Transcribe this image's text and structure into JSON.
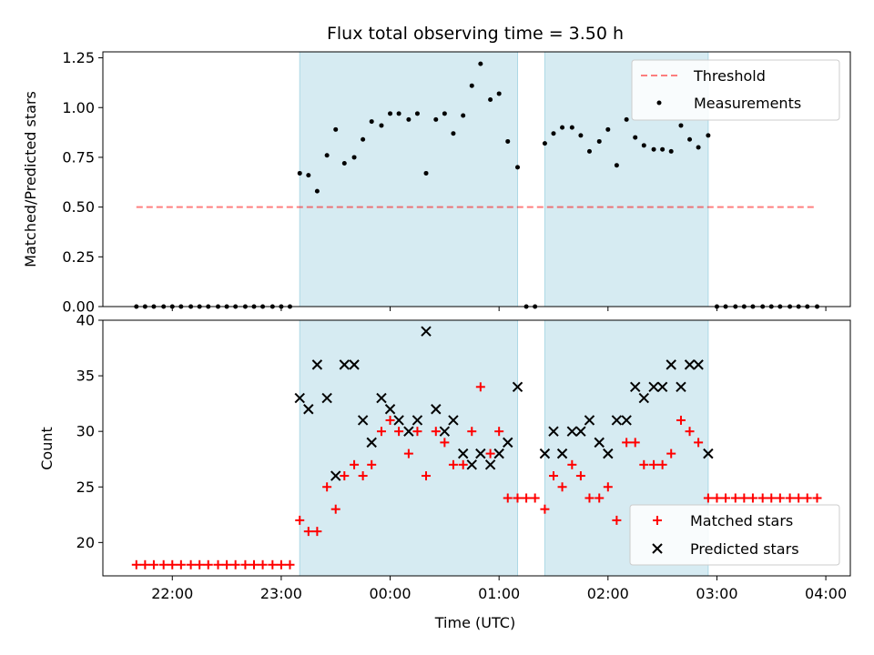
{
  "title": "Flux total observing time = 3.50 h",
  "colors": {
    "observing_window": "#add8e6",
    "threshold": "#ff0000",
    "measurements": "#000000",
    "matched": "#ff0000",
    "predicted": "#000000"
  },
  "chart_data": [
    {
      "type": "scatter",
      "ylabel": "Matched/Predicted stars",
      "xlim": [
        -2.6375,
        4.225
      ],
      "ylim": [
        0,
        1.28
      ],
      "yticks": [
        0.0,
        0.25,
        0.5,
        0.75,
        1.0,
        1.25
      ],
      "ytick_labels": [
        "0.00",
        "0.25",
        "0.50",
        "0.75",
        "1.00",
        "1.25"
      ],
      "x_units": "hours relative to 00:00 UTC",
      "observing_windows": [
        [
          -0.83,
          1.17
        ],
        [
          1.42,
          2.92
        ]
      ],
      "threshold": {
        "name": "Threshold",
        "value": 0.5,
        "x_range": [
          -2.33,
          3.92
        ],
        "style": "dashed"
      },
      "legend": {
        "placement": "top-right",
        "entries": [
          "Threshold",
          "Measurements"
        ]
      },
      "series": [
        {
          "name": "Measurements",
          "marker": "dot",
          "x": [
            -2.33,
            -2.25,
            -2.17,
            -2.08,
            -2.0,
            -1.92,
            -1.83,
            -1.75,
            -1.67,
            -1.58,
            -1.5,
            -1.42,
            -1.33,
            -1.25,
            -1.17,
            -1.08,
            -1.0,
            -0.92,
            -0.83,
            -0.75,
            -0.67,
            -0.58,
            -0.5,
            -0.42,
            -0.33,
            -0.25,
            -0.17,
            -0.08,
            0.0,
            0.08,
            0.17,
            0.25,
            0.33,
            0.42,
            0.5,
            0.58,
            0.67,
            0.75,
            0.83,
            0.92,
            1.0,
            1.08,
            1.17,
            1.25,
            1.33,
            1.42,
            1.5,
            1.58,
            1.67,
            1.75,
            1.83,
            1.92,
            2.0,
            2.08,
            2.17,
            2.25,
            2.33,
            2.42,
            2.5,
            2.58,
            2.67,
            2.75,
            2.83,
            2.92,
            3.0,
            3.08,
            3.17,
            3.25,
            3.33,
            3.42,
            3.5,
            3.58,
            3.67,
            3.75,
            3.83,
            3.92
          ],
          "y": [
            0,
            0,
            0,
            0,
            0,
            0,
            0,
            0,
            0,
            0,
            0,
            0,
            0,
            0,
            0,
            0,
            0,
            0,
            0.67,
            0.66,
            0.58,
            0.76,
            0.89,
            0.72,
            0.75,
            0.84,
            0.93,
            0.91,
            0.97,
            0.97,
            0.94,
            0.97,
            0.67,
            0.94,
            0.97,
            0.87,
            0.96,
            1.11,
            1.22,
            1.04,
            1.07,
            0.83,
            0.7,
            0,
            0,
            0.82,
            0.87,
            0.9,
            0.9,
            0.86,
            0.78,
            0.83,
            0.89,
            0.71,
            0.94,
            0.85,
            0.81,
            0.79,
            0.79,
            0.78,
            0.91,
            0.84,
            0.8,
            0.86,
            0,
            0,
            0,
            0,
            0,
            0,
            0,
            0,
            0,
            0,
            0,
            0
          ]
        }
      ]
    },
    {
      "type": "scatter",
      "xlabel": "Time (UTC)",
      "ylabel": "Count",
      "xlim": [
        -2.6375,
        4.225
      ],
      "ylim": [
        17,
        40
      ],
      "yticks": [
        20,
        25,
        30,
        35,
        40
      ],
      "ytick_labels": [
        "20",
        "25",
        "30",
        "35",
        "40"
      ],
      "xticks": [
        -2,
        -1,
        0,
        1,
        2,
        3,
        4
      ],
      "xtick_labels": [
        "22:00",
        "23:00",
        "00:00",
        "01:00",
        "02:00",
        "03:00",
        "04:00"
      ],
      "observing_windows": [
        [
          -0.83,
          1.17
        ],
        [
          1.42,
          2.92
        ]
      ],
      "legend": {
        "placement": "bottom-right",
        "entries": [
          "Matched stars",
          "Predicted stars"
        ]
      },
      "series": [
        {
          "name": "Matched stars",
          "marker": "plus",
          "x": [
            -2.33,
            -2.25,
            -2.17,
            -2.08,
            -2.0,
            -1.92,
            -1.83,
            -1.75,
            -1.67,
            -1.58,
            -1.5,
            -1.42,
            -1.33,
            -1.25,
            -1.17,
            -1.08,
            -1.0,
            -0.92,
            -0.83,
            -0.75,
            -0.67,
            -0.58,
            -0.5,
            -0.42,
            -0.33,
            -0.25,
            -0.17,
            -0.08,
            0.0,
            0.08,
            0.17,
            0.25,
            0.33,
            0.42,
            0.5,
            0.58,
            0.67,
            0.75,
            0.83,
            0.92,
            1.0,
            1.08,
            1.17,
            1.25,
            1.33,
            1.42,
            1.5,
            1.58,
            1.67,
            1.75,
            1.83,
            1.92,
            2.0,
            2.08,
            2.17,
            2.25,
            2.33,
            2.42,
            2.5,
            2.58,
            2.67,
            2.75,
            2.83,
            2.92,
            3.0,
            3.08,
            3.17,
            3.25,
            3.33,
            3.42,
            3.5,
            3.58,
            3.67,
            3.75,
            3.83,
            3.92
          ],
          "y": [
            18,
            18,
            18,
            18,
            18,
            18,
            18,
            18,
            18,
            18,
            18,
            18,
            18,
            18,
            18,
            18,
            18,
            18,
            22,
            21,
            21,
            25,
            23,
            26,
            27,
            26,
            27,
            30,
            31,
            30,
            28,
            30,
            26,
            30,
            29,
            27,
            27,
            30,
            34,
            28,
            30,
            24,
            24,
            24,
            24,
            23,
            26,
            25,
            27,
            26,
            24,
            24,
            25,
            22,
            29,
            29,
            27,
            27,
            27,
            28,
            31,
            30,
            29,
            24,
            24,
            24,
            24,
            24,
            24,
            24,
            24,
            24,
            24,
            24,
            24,
            24
          ]
        },
        {
          "name": "Predicted stars",
          "marker": "x",
          "x": [
            -0.83,
            -0.75,
            -0.67,
            -0.58,
            -0.5,
            -0.42,
            -0.33,
            -0.25,
            -0.17,
            -0.08,
            0.0,
            0.08,
            0.17,
            0.25,
            0.33,
            0.42,
            0.5,
            0.58,
            0.67,
            0.75,
            0.83,
            0.92,
            1.0,
            1.08,
            1.17,
            1.42,
            1.5,
            1.58,
            1.67,
            1.75,
            1.83,
            1.92,
            2.0,
            2.08,
            2.17,
            2.25,
            2.33,
            2.42,
            2.5,
            2.58,
            2.67,
            2.75,
            2.83,
            2.92
          ],
          "y": [
            33,
            32,
            36,
            33,
            26,
            36,
            36,
            31,
            29,
            33,
            32,
            31,
            30,
            31,
            39,
            32,
            30,
            31,
            28,
            27,
            28,
            27,
            28,
            29,
            34,
            28,
            30,
            28,
            30,
            30,
            31,
            29,
            28,
            31,
            31,
            34,
            33,
            34,
            34,
            36,
            34,
            36,
            36,
            28
          ]
        }
      ]
    }
  ]
}
